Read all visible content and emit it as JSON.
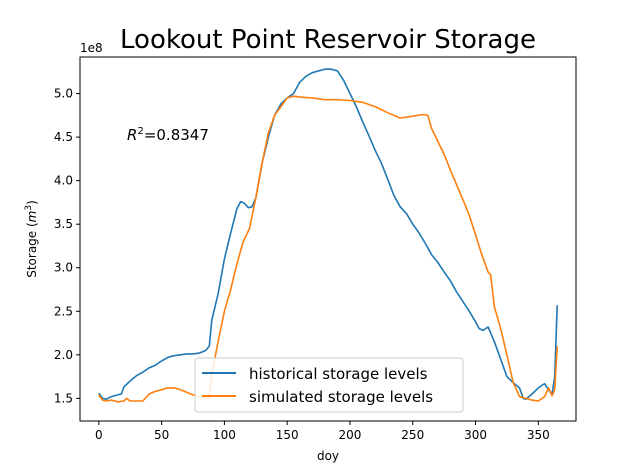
{
  "chart_data": {
    "type": "line",
    "title": "Lookout Point Reservoir Storage",
    "xlabel": "doy",
    "ylabel": "Storage ($m^3$)",
    "ylabel_main": "Storage (",
    "ylabel_unit": "m",
    "ylabel_exp": "3",
    "ylabel_close": ")",
    "offset_text": "1e8",
    "annotation": "$R^2$=0.8347",
    "annotation_parts": {
      "sym": "R",
      "exp": "2",
      "rest": "=0.8347"
    },
    "xlim": [
      -15,
      380
    ],
    "ylim": [
      1.24,
      5.42
    ],
    "x_ticks": [
      0,
      50,
      100,
      150,
      200,
      250,
      300,
      350
    ],
    "y_ticks": [
      1.5,
      2.0,
      2.5,
      3.0,
      3.5,
      4.0,
      4.5,
      5.0
    ],
    "y_tick_labels": [
      "1.5",
      "2.0",
      "2.5",
      "3.0",
      "3.5",
      "4.0",
      "4.5",
      "5.0"
    ],
    "legend_position": "lower center",
    "series": [
      {
        "name": "historical storage levels",
        "color": "#1f77b4",
        "points": [
          [
            0,
            1.56
          ],
          [
            3,
            1.5
          ],
          [
            6,
            1.49
          ],
          [
            10,
            1.52
          ],
          [
            15,
            1.54
          ],
          [
            18,
            1.55
          ],
          [
            20,
            1.63
          ],
          [
            25,
            1.7
          ],
          [
            30,
            1.76
          ],
          [
            35,
            1.8
          ],
          [
            40,
            1.85
          ],
          [
            45,
            1.88
          ],
          [
            50,
            1.93
          ],
          [
            55,
            1.97
          ],
          [
            60,
            1.99
          ],
          [
            65,
            2.0
          ],
          [
            70,
            2.01
          ],
          [
            75,
            2.01
          ],
          [
            80,
            2.02
          ],
          [
            85,
            2.05
          ],
          [
            88,
            2.1
          ],
          [
            90,
            2.4
          ],
          [
            95,
            2.7
          ],
          [
            100,
            3.1
          ],
          [
            105,
            3.4
          ],
          [
            110,
            3.68
          ],
          [
            113,
            3.76
          ],
          [
            116,
            3.74
          ],
          [
            119,
            3.69
          ],
          [
            122,
            3.7
          ],
          [
            125,
            3.8
          ],
          [
            130,
            4.2
          ],
          [
            135,
            4.5
          ],
          [
            140,
            4.75
          ],
          [
            145,
            4.88
          ],
          [
            150,
            4.95
          ],
          [
            155,
            5.0
          ],
          [
            160,
            5.13
          ],
          [
            165,
            5.2
          ],
          [
            170,
            5.24
          ],
          [
            175,
            5.26
          ],
          [
            180,
            5.28
          ],
          [
            185,
            5.28
          ],
          [
            190,
            5.26
          ],
          [
            195,
            5.15
          ],
          [
            200,
            5.0
          ],
          [
            205,
            4.85
          ],
          [
            210,
            4.68
          ],
          [
            215,
            4.52
          ],
          [
            220,
            4.35
          ],
          [
            225,
            4.2
          ],
          [
            230,
            4.02
          ],
          [
            235,
            3.83
          ],
          [
            240,
            3.7
          ],
          [
            245,
            3.62
          ],
          [
            250,
            3.5
          ],
          [
            255,
            3.4
          ],
          [
            260,
            3.28
          ],
          [
            265,
            3.15
          ],
          [
            270,
            3.06
          ],
          [
            275,
            2.95
          ],
          [
            280,
            2.85
          ],
          [
            285,
            2.72
          ],
          [
            290,
            2.61
          ],
          [
            295,
            2.5
          ],
          [
            300,
            2.38
          ],
          [
            303,
            2.3
          ],
          [
            306,
            2.28
          ],
          [
            310,
            2.32
          ],
          [
            315,
            2.15
          ],
          [
            320,
            1.95
          ],
          [
            325,
            1.75
          ],
          [
            330,
            1.68
          ],
          [
            335,
            1.62
          ],
          [
            338,
            1.5
          ],
          [
            340,
            1.49
          ],
          [
            345,
            1.55
          ],
          [
            350,
            1.62
          ],
          [
            355,
            1.67
          ],
          [
            358,
            1.6
          ],
          [
            361,
            1.55
          ],
          [
            363,
            1.75
          ],
          [
            365,
            2.57
          ]
        ]
      },
      {
        "name": "simulated storage levels",
        "color": "#ff7f0e",
        "points": [
          [
            0,
            1.54
          ],
          [
            3,
            1.48
          ],
          [
            6,
            1.47
          ],
          [
            10,
            1.48
          ],
          [
            15,
            1.46
          ],
          [
            20,
            1.47
          ],
          [
            22,
            1.5
          ],
          [
            25,
            1.47
          ],
          [
            30,
            1.47
          ],
          [
            35,
            1.47
          ],
          [
            40,
            1.55
          ],
          [
            45,
            1.58
          ],
          [
            50,
            1.6
          ],
          [
            55,
            1.62
          ],
          [
            60,
            1.62
          ],
          [
            65,
            1.6
          ],
          [
            70,
            1.57
          ],
          [
            75,
            1.54
          ],
          [
            80,
            1.52
          ],
          [
            85,
            1.5
          ],
          [
            88,
            1.5
          ],
          [
            90,
            1.78
          ],
          [
            95,
            2.15
          ],
          [
            100,
            2.5
          ],
          [
            105,
            2.75
          ],
          [
            110,
            3.05
          ],
          [
            115,
            3.3
          ],
          [
            120,
            3.45
          ],
          [
            125,
            3.8
          ],
          [
            130,
            4.2
          ],
          [
            135,
            4.55
          ],
          [
            140,
            4.75
          ],
          [
            145,
            4.85
          ],
          [
            150,
            4.95
          ],
          [
            155,
            4.97
          ],
          [
            160,
            4.96
          ],
          [
            170,
            4.95
          ],
          [
            180,
            4.93
          ],
          [
            190,
            4.93
          ],
          [
            200,
            4.92
          ],
          [
            210,
            4.9
          ],
          [
            220,
            4.85
          ],
          [
            230,
            4.78
          ],
          [
            240,
            4.72
          ],
          [
            250,
            4.74
          ],
          [
            258,
            4.76
          ],
          [
            262,
            4.75
          ],
          [
            265,
            4.6
          ],
          [
            270,
            4.45
          ],
          [
            275,
            4.3
          ],
          [
            280,
            4.12
          ],
          [
            285,
            3.95
          ],
          [
            290,
            3.78
          ],
          [
            295,
            3.6
          ],
          [
            300,
            3.38
          ],
          [
            305,
            3.15
          ],
          [
            310,
            2.95
          ],
          [
            312,
            2.92
          ],
          [
            315,
            2.55
          ],
          [
            320,
            2.3
          ],
          [
            325,
            2.0
          ],
          [
            330,
            1.68
          ],
          [
            335,
            1.52
          ],
          [
            340,
            1.5
          ],
          [
            345,
            1.48
          ],
          [
            350,
            1.47
          ],
          [
            355,
            1.52
          ],
          [
            358,
            1.62
          ],
          [
            361,
            1.53
          ],
          [
            363,
            1.6
          ],
          [
            365,
            2.1
          ]
        ]
      }
    ]
  }
}
